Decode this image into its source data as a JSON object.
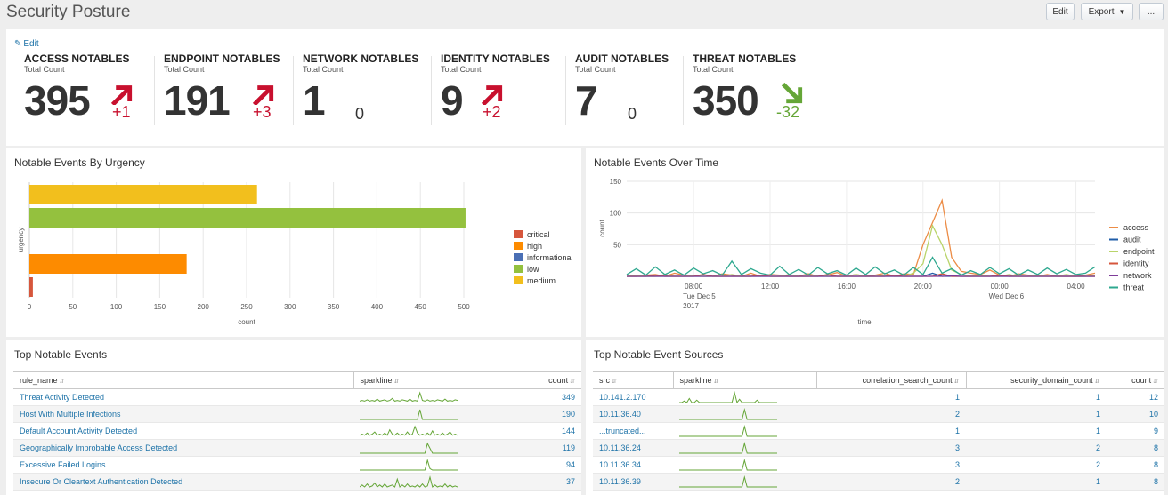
{
  "header": {
    "title": "Security Posture",
    "edit_label": "Edit",
    "export_label": "Export",
    "more_label": "..."
  },
  "kpis": {
    "edit_label": "Edit",
    "items": [
      {
        "label": "ACCESS NOTABLES",
        "sub": "Total Count",
        "value": "395",
        "delta": "+1",
        "trend": "up"
      },
      {
        "label": "ENDPOINT NOTABLES",
        "sub": "Total Count",
        "value": "191",
        "delta": "+3",
        "trend": "up"
      },
      {
        "label": "NETWORK NOTABLES",
        "sub": "Total Count",
        "value": "1",
        "delta": "0",
        "trend": "none"
      },
      {
        "label": "IDENTITY NOTABLES",
        "sub": "Total Count",
        "value": "9",
        "delta": "+2",
        "trend": "up"
      },
      {
        "label": "AUDIT NOTABLES",
        "sub": "Total Count",
        "value": "7",
        "delta": "0",
        "trend": "none"
      },
      {
        "label": "THREAT NOTABLES",
        "sub": "Total Count",
        "value": "350",
        "delta": "-32",
        "trend": "down"
      }
    ],
    "colors": {
      "up": "#c8102e",
      "down": "#65a637",
      "none": "#333333"
    }
  },
  "urgency_panel": {
    "title": "Notable Events By Urgency"
  },
  "time_panel": {
    "title": "Notable Events Over Time"
  },
  "chart_data": [
    {
      "type": "bar",
      "orientation": "horizontal",
      "title": "Notable Events By Urgency",
      "xlabel": "count",
      "ylabel": "urgency",
      "xlim": [
        0,
        500
      ],
      "xticks": [
        "0",
        "50",
        "100",
        "150",
        "200",
        "250",
        "300",
        "350",
        "400",
        "450",
        "500"
      ],
      "categories": [
        "medium",
        "low",
        "informational",
        "high",
        "critical"
      ],
      "values": [
        262,
        502,
        0,
        181,
        4
      ],
      "colors": {
        "critical": "#d6563c",
        "high": "#fd8b00",
        "informational": "#4a6fb5",
        "low": "#94c13e",
        "medium": "#f2bf1d"
      },
      "legend": [
        "critical",
        "high",
        "informational",
        "low",
        "medium"
      ],
      "legend_position": "right",
      "grid": true
    },
    {
      "type": "line",
      "title": "Notable Events Over Time",
      "xlabel": "time",
      "ylabel": "count",
      "ylim": [
        0,
        150
      ],
      "yticks": [
        "50",
        "100",
        "150"
      ],
      "xtick_labels": [
        {
          "at": 7,
          "lines": [
            "08:00",
            "Tue Dec 5",
            "2017"
          ]
        },
        {
          "at": 15,
          "lines": [
            "12:00"
          ]
        },
        {
          "at": 23,
          "lines": [
            "16:00"
          ]
        },
        {
          "at": 31,
          "lines": [
            "20:00"
          ]
        },
        {
          "at": 39,
          "lines": [
            "00:00",
            "Wed Dec 6"
          ]
        },
        {
          "at": 47,
          "lines": [
            "04:00"
          ]
        }
      ],
      "legend_position": "right",
      "grid": true,
      "series": [
        {
          "name": "access",
          "color": "#ec8c46",
          "values": [
            0,
            0,
            2,
            3,
            0,
            5,
            2,
            0,
            3,
            0,
            4,
            2,
            0,
            5,
            0,
            3,
            2,
            0,
            0,
            4,
            0,
            2,
            6,
            0,
            3,
            0,
            2,
            5,
            0,
            4,
            3,
            50,
            85,
            120,
            30,
            8,
            5,
            3,
            10,
            2,
            0,
            4,
            2,
            0,
            3,
            0,
            0,
            0,
            2,
            5
          ]
        },
        {
          "name": "audit",
          "color": "#1f5ca8",
          "values": [
            0,
            0,
            0,
            0,
            0,
            0,
            0,
            0,
            0,
            0,
            0,
            0,
            0,
            0,
            0,
            0,
            0,
            0,
            0,
            0,
            0,
            0,
            0,
            0,
            0,
            0,
            0,
            0,
            0,
            0,
            0,
            0,
            5,
            0,
            0,
            0,
            0,
            0,
            0,
            0,
            0,
            0,
            0,
            0,
            0,
            0,
            0,
            0,
            0,
            0
          ]
        },
        {
          "name": "endpoint",
          "color": "#b9d46a",
          "values": [
            0,
            2,
            0,
            0,
            3,
            0,
            0,
            2,
            0,
            0,
            0,
            3,
            0,
            0,
            2,
            0,
            0,
            3,
            0,
            0,
            2,
            0,
            0,
            0,
            3,
            0,
            0,
            2,
            0,
            0,
            5,
            20,
            80,
            50,
            10,
            3,
            0,
            2,
            0,
            0,
            3,
            0,
            0,
            2,
            0,
            0,
            3,
            0,
            0,
            2
          ]
        },
        {
          "name": "identity",
          "color": "#d6563c",
          "values": [
            0,
            0,
            0,
            2,
            0,
            0,
            0,
            0,
            3,
            0,
            0,
            0,
            0,
            0,
            2,
            0,
            0,
            0,
            0,
            0,
            0,
            3,
            0,
            0,
            0,
            0,
            0,
            0,
            2,
            0,
            0,
            0,
            0,
            4,
            0,
            0,
            0,
            0,
            0,
            2,
            0,
            0,
            0,
            0,
            0,
            0,
            0,
            0,
            0,
            0
          ]
        },
        {
          "name": "network",
          "color": "#7e3c99",
          "values": [
            0,
            0,
            0,
            0,
            0,
            0,
            0,
            0,
            0,
            0,
            0,
            0,
            0,
            0,
            0,
            0,
            0,
            0,
            0,
            0,
            0,
            0,
            0,
            0,
            0,
            0,
            0,
            0,
            0,
            0,
            0,
            0,
            0,
            0,
            1,
            0,
            0,
            0,
            0,
            0,
            0,
            0,
            0,
            0,
            0,
            0,
            0,
            0,
            0,
            0
          ]
        },
        {
          "name": "threat",
          "color": "#2ea88f",
          "values": [
            3,
            12,
            2,
            15,
            3,
            10,
            2,
            13,
            4,
            9,
            2,
            24,
            3,
            12,
            5,
            2,
            16,
            3,
            11,
            2,
            14,
            4,
            9,
            2,
            13,
            3,
            15,
            4,
            10,
            2,
            14,
            3,
            30,
            5,
            12,
            2,
            9,
            3,
            14,
            4,
            12,
            2,
            10,
            3,
            13,
            4,
            11,
            3,
            5,
            15
          ]
        }
      ]
    }
  ],
  "top_events": {
    "title": "Top Notable Events",
    "columns": [
      "rule_name",
      "sparkline",
      "count"
    ],
    "rows": [
      {
        "rule_name": "Threat Activity Detected",
        "count": "349",
        "spark": [
          2,
          3,
          2,
          4,
          2,
          3,
          2,
          5,
          2,
          3,
          4,
          2,
          3,
          6,
          2,
          3,
          2,
          4,
          3,
          2,
          5,
          2,
          3,
          2,
          14,
          3,
          2,
          4,
          2,
          3,
          2,
          4,
          3,
          2,
          5,
          2,
          3,
          2,
          4,
          3
        ]
      },
      {
        "rule_name": "Host With Multiple Infections",
        "count": "190",
        "spark": [
          0,
          0,
          0,
          0,
          0,
          0,
          0,
          0,
          0,
          0,
          0,
          0,
          0,
          0,
          0,
          0,
          0,
          0,
          0,
          0,
          0,
          0,
          0,
          0,
          14,
          0,
          0,
          0,
          0,
          0,
          0,
          0,
          0,
          0,
          0,
          0,
          0,
          0,
          0,
          0
        ]
      },
      {
        "rule_name": "Default Account Activity Detected",
        "count": "144",
        "spark": [
          1,
          2,
          1,
          3,
          1,
          2,
          4,
          1,
          2,
          1,
          3,
          1,
          6,
          2,
          1,
          3,
          1,
          2,
          1,
          4,
          1,
          2,
          9,
          3,
          1,
          2,
          1,
          3,
          1,
          5,
          1,
          2,
          1,
          3,
          1,
          2,
          4,
          1,
          2,
          1
        ]
      },
      {
        "rule_name": "Geographically Improbable Access Detected",
        "count": "119",
        "spark": [
          0,
          0,
          0,
          0,
          0,
          0,
          0,
          0,
          0,
          0,
          0,
          0,
          0,
          0,
          0,
          0,
          0,
          0,
          0,
          0,
          0,
          0,
          0,
          0,
          0,
          0,
          0,
          12,
          6,
          0,
          0,
          0,
          0,
          0,
          0,
          0,
          0,
          0,
          0,
          0
        ]
      },
      {
        "rule_name": "Excessive Failed Logins",
        "count": "94",
        "spark": [
          0,
          0,
          0,
          0,
          0,
          0,
          0,
          0,
          0,
          0,
          0,
          0,
          0,
          0,
          0,
          0,
          0,
          0,
          0,
          0,
          0,
          0,
          0,
          0,
          0,
          0,
          0,
          14,
          2,
          0,
          0,
          0,
          0,
          0,
          0,
          0,
          0,
          0,
          0,
          0
        ]
      },
      {
        "rule_name": "Insecure Or Cleartext Authentication Detected",
        "count": "37",
        "spark": [
          0,
          2,
          0,
          3,
          0,
          1,
          4,
          0,
          2,
          0,
          3,
          0,
          1,
          2,
          0,
          8,
          0,
          2,
          0,
          3,
          0,
          1,
          0,
          2,
          0,
          3,
          0,
          1,
          10,
          0,
          2,
          0,
          1,
          0,
          3,
          0,
          2,
          0,
          1,
          0
        ]
      }
    ]
  },
  "top_sources": {
    "title": "Top Notable Event Sources",
    "columns": [
      "src",
      "sparkline",
      "correlation_search_count",
      "security_domain_count",
      "count"
    ],
    "rows": [
      {
        "src": "10.141.2.170",
        "corr": "1",
        "domain": "1",
        "count": "12",
        "spark": [
          0,
          0,
          2,
          0,
          5,
          0,
          0,
          3,
          0,
          0,
          0,
          0,
          0,
          0,
          0,
          0,
          0,
          0,
          0,
          0,
          0,
          0,
          12,
          0,
          4,
          0,
          0,
          0,
          0,
          0,
          0,
          3,
          0,
          0,
          0,
          0,
          0,
          0,
          0,
          0
        ]
      },
      {
        "src": "10.11.36.40",
        "corr": "2",
        "domain": "1",
        "count": "10",
        "spark": [
          0,
          0,
          0,
          0,
          0,
          0,
          0,
          0,
          0,
          0,
          0,
          0,
          0,
          0,
          0,
          0,
          0,
          0,
          0,
          0,
          0,
          0,
          0,
          0,
          0,
          0,
          12,
          0,
          0,
          0,
          0,
          0,
          0,
          0,
          0,
          0,
          0,
          0,
          0,
          0
        ]
      },
      {
        "src": "...truncated...",
        "corr": "1",
        "domain": "1",
        "count": "9",
        "spark": [
          0,
          0,
          0,
          0,
          0,
          0,
          0,
          0,
          0,
          0,
          0,
          0,
          0,
          0,
          0,
          0,
          0,
          0,
          0,
          0,
          0,
          0,
          0,
          0,
          0,
          0,
          12,
          0,
          0,
          0,
          0,
          0,
          0,
          0,
          0,
          0,
          0,
          0,
          0,
          0
        ]
      },
      {
        "src": "10.11.36.24",
        "corr": "3",
        "domain": "2",
        "count": "8",
        "spark": [
          0,
          0,
          0,
          0,
          0,
          0,
          0,
          0,
          0,
          0,
          0,
          0,
          0,
          0,
          0,
          0,
          0,
          0,
          0,
          0,
          0,
          0,
          0,
          0,
          0,
          0,
          12,
          0,
          0,
          0,
          0,
          0,
          0,
          0,
          0,
          0,
          0,
          0,
          0,
          0
        ]
      },
      {
        "src": "10.11.36.34",
        "corr": "3",
        "domain": "2",
        "count": "8",
        "spark": [
          0,
          0,
          0,
          0,
          0,
          0,
          0,
          0,
          0,
          0,
          0,
          0,
          0,
          0,
          0,
          0,
          0,
          0,
          0,
          0,
          0,
          0,
          0,
          0,
          0,
          0,
          12,
          0,
          0,
          0,
          0,
          0,
          0,
          0,
          0,
          0,
          0,
          0,
          0,
          0
        ]
      },
      {
        "src": "10.11.36.39",
        "corr": "2",
        "domain": "1",
        "count": "8",
        "spark": [
          0,
          0,
          0,
          0,
          0,
          0,
          0,
          0,
          0,
          0,
          0,
          0,
          0,
          0,
          0,
          0,
          0,
          0,
          0,
          0,
          0,
          0,
          0,
          0,
          0,
          0,
          12,
          0,
          0,
          0,
          0,
          0,
          0,
          0,
          0,
          0,
          0,
          0,
          0,
          0
        ]
      }
    ]
  }
}
